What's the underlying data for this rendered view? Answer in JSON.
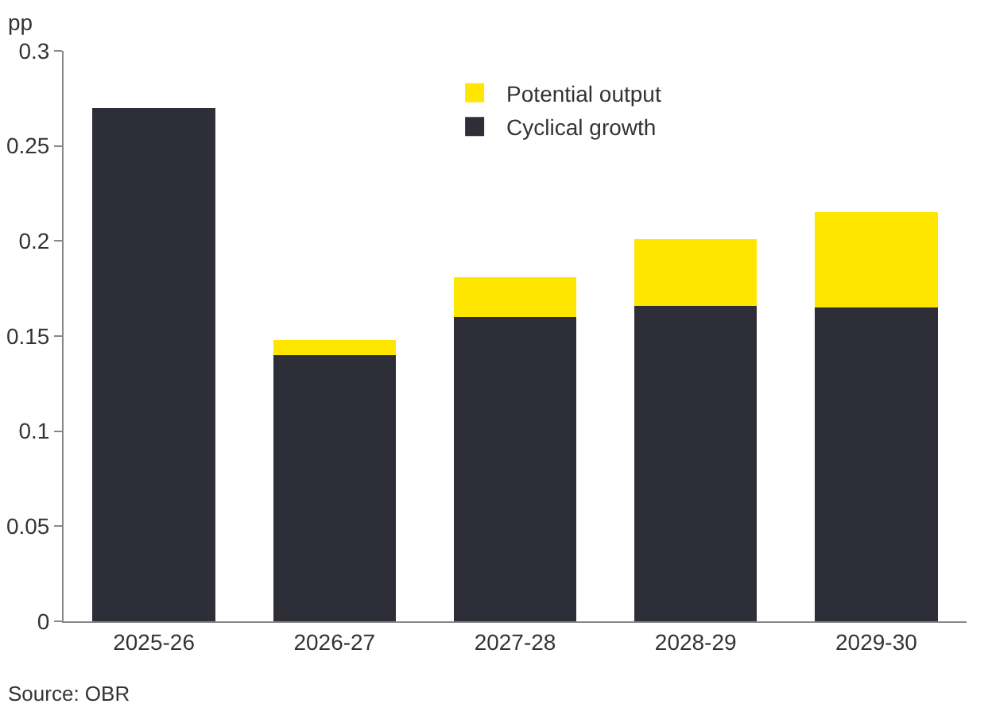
{
  "chart_data": {
    "type": "bar",
    "ylabel": "pp",
    "categories": [
      "2025-26",
      "2026-27",
      "2027-28",
      "2028-29",
      "2029-30"
    ],
    "stacked": true,
    "series": [
      {
        "name": "Cyclical growth",
        "color": "#2e2e38",
        "values": [
          0.27,
          0.14,
          0.16,
          0.166,
          0.165
        ]
      },
      {
        "name": "Potential output",
        "color": "#ffe600",
        "values": [
          0,
          0.008,
          0.021,
          0.035,
          0.05
        ]
      }
    ],
    "ylim": [
      0,
      0.3
    ],
    "yticks": [
      0,
      0.05,
      0.1,
      0.15,
      0.2,
      0.25,
      0.3
    ],
    "grid": false,
    "legend": "top",
    "annotations": [
      "Source: OBR"
    ]
  }
}
